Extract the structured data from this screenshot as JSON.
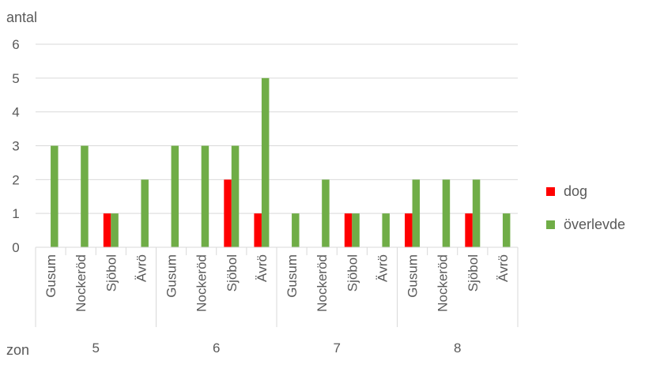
{
  "chart_data": {
    "type": "bar",
    "ylabel": "antal",
    "xlabel": "zon",
    "ylim": [
      0,
      6
    ],
    "yticks": [
      0,
      1,
      2,
      3,
      4,
      5,
      6
    ],
    "grid": true,
    "legend_position": "right",
    "groups": [
      {
        "zone": "5",
        "categories": [
          "Gusum",
          "Nockeröd",
          "Sjöbol",
          "Ävrö"
        ]
      },
      {
        "zone": "6",
        "categories": [
          "Gusum",
          "Nockeröd",
          "Sjöbol",
          "Ävrö"
        ]
      },
      {
        "zone": "7",
        "categories": [
          "Gusum",
          "Nockeröd",
          "Sjöbol",
          "Ävrö"
        ]
      },
      {
        "zone": "8",
        "categories": [
          "Gusum",
          "Nockeröd",
          "Sjöbol",
          "Ävrö"
        ]
      }
    ],
    "series": [
      {
        "name": "dog",
        "color": "#ff0000",
        "values": [
          0,
          0,
          1,
          0,
          0,
          0,
          2,
          1,
          0,
          0,
          1,
          0,
          1,
          0,
          1,
          0
        ]
      },
      {
        "name": "överlevde",
        "color": "#70ad47",
        "values": [
          3,
          3,
          1,
          2,
          3,
          3,
          3,
          5,
          1,
          2,
          1,
          1,
          2,
          2,
          2,
          1
        ]
      }
    ]
  }
}
